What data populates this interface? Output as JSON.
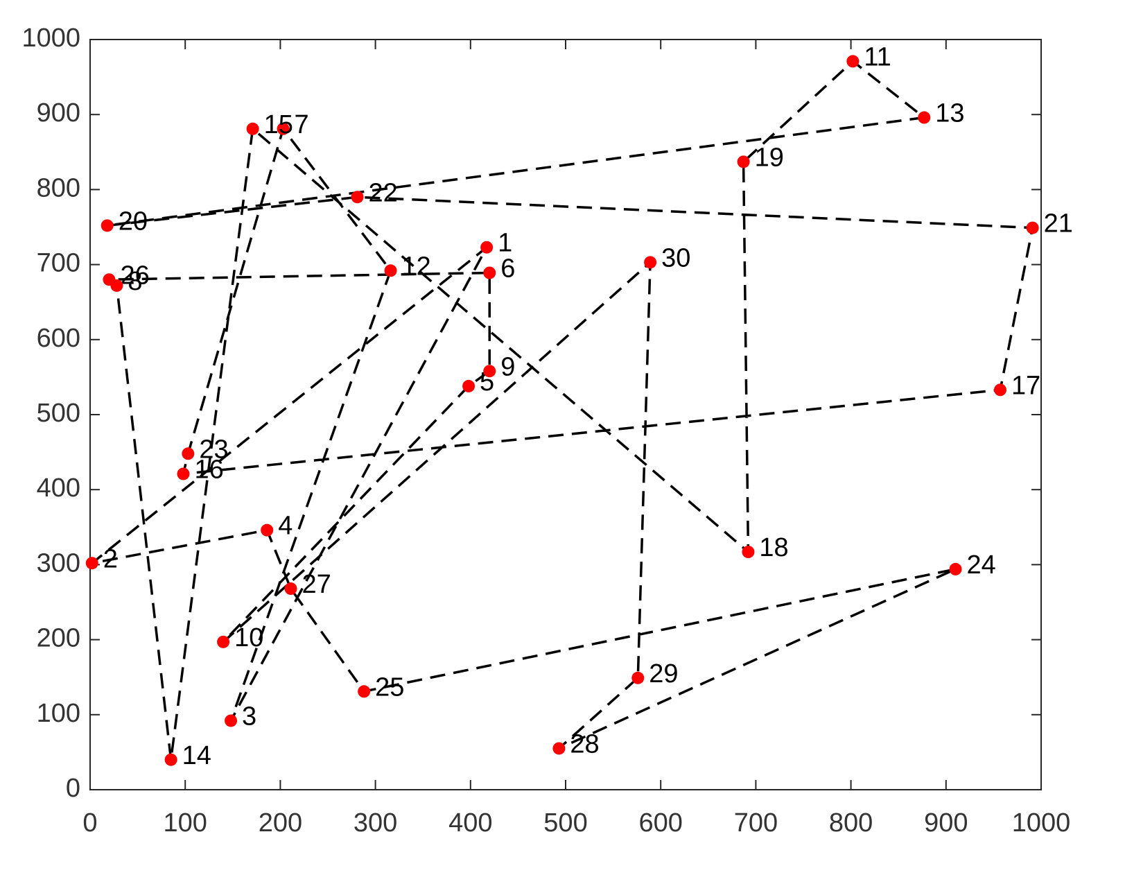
{
  "chart_data": {
    "type": "scatter",
    "labels": [
      "20",
      "22",
      "21",
      "17",
      "16",
      "23",
      "7",
      "12",
      "3",
      "1",
      "2",
      "4",
      "27",
      "25",
      "24",
      "28",
      "29",
      "30",
      "10",
      "5",
      "9",
      "6",
      "26",
      "8",
      "14",
      "15",
      "18",
      "19",
      "11",
      "13"
    ],
    "x": [
      18,
      281,
      991,
      957,
      98,
      103,
      203,
      316,
      148,
      417,
      2,
      186,
      211,
      288,
      910,
      493,
      576,
      589,
      140,
      398,
      420,
      420,
      20,
      28,
      85,
      171,
      692,
      687,
      802,
      877
    ],
    "y": [
      752,
      790,
      749,
      533,
      421,
      448,
      881,
      692,
      92,
      723,
      302,
      346,
      268,
      131,
      294,
      55,
      149,
      703,
      197,
      538,
      558,
      689,
      680,
      672,
      40,
      881,
      317,
      837,
      971,
      896
    ],
    "color": "#ff0000",
    "line_color": "#000000",
    "line_style": "dashed",
    "closed": true,
    "xlim": [
      0,
      1000
    ],
    "ylim": [
      0,
      1000
    ],
    "xticks": [
      0,
      100,
      200,
      300,
      400,
      500,
      600,
      700,
      800,
      900,
      1000
    ],
    "yticks": [
      0,
      100,
      200,
      300,
      400,
      500,
      600,
      700,
      800,
      900,
      1000
    ]
  }
}
